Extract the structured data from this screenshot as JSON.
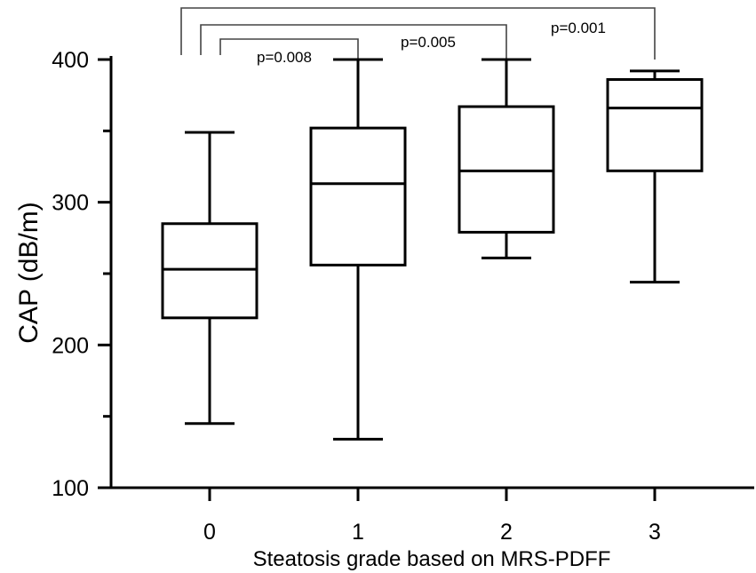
{
  "chart_data": {
    "type": "box",
    "title": "",
    "xlabel": "Steatosis grade based on MRS-PDFF",
    "ylabel": "CAP (dB/m)",
    "ylim": [
      100,
      400
    ],
    "yticks": [
      "100",
      "200",
      "300",
      "400"
    ],
    "minor_ytick_step": 50,
    "grid": false,
    "categories": [
      "0",
      "1",
      "2",
      "3"
    ],
    "boxes": [
      {
        "category": "0",
        "min": 145,
        "q1": 219,
        "median": 253,
        "q3": 285,
        "max": 349
      },
      {
        "category": "1",
        "min": 134,
        "q1": 256,
        "median": 313,
        "q3": 352,
        "max": 400
      },
      {
        "category": "2",
        "min": 261,
        "q1": 279,
        "median": 322,
        "q3": 367,
        "max": 400
      },
      {
        "category": "3",
        "min": 244,
        "q1": 322,
        "median": 366,
        "q3": 386,
        "max": 392
      }
    ],
    "comparisons": [
      {
        "from": "0",
        "to": "1",
        "label": "p=0.008"
      },
      {
        "from": "0",
        "to": "2",
        "label": "p=0.005"
      },
      {
        "from": "0",
        "to": "3",
        "label": "p=0.001"
      }
    ]
  }
}
